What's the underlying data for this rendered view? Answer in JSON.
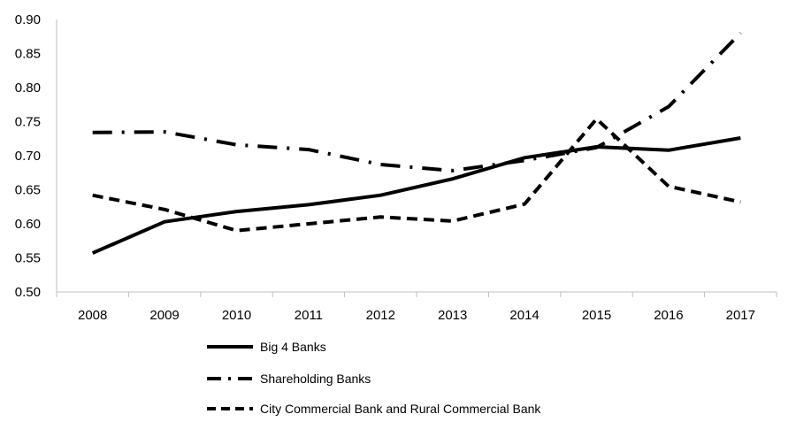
{
  "chart_data": {
    "type": "line",
    "title": "",
    "xlabel": "",
    "ylabel": "",
    "ylim": [
      0.5,
      0.9
    ],
    "yticks": [
      "0.50",
      "0.55",
      "0.60",
      "0.65",
      "0.70",
      "0.75",
      "0.80",
      "0.85",
      "0.90"
    ],
    "x": [
      "2008",
      "2009",
      "2010",
      "2011",
      "2012",
      "2013",
      "2014",
      "2015",
      "2016",
      "2017"
    ],
    "grid": false,
    "legend_position": "bottom",
    "series": [
      {
        "name": "Big 4 Banks",
        "style": "solid",
        "color": "#000000",
        "values": [
          0.557,
          0.603,
          0.618,
          0.628,
          0.642,
          0.666,
          0.697,
          0.713,
          0.708,
          0.726
        ]
      },
      {
        "name": "Shareholding Banks",
        "style": "dash-dot",
        "color": "#000000",
        "values": [
          0.734,
          0.735,
          0.716,
          0.709,
          0.687,
          0.678,
          0.693,
          0.712,
          0.772,
          0.88
        ]
      },
      {
        "name": "City Commercial Bank and Rural Commercial Bank",
        "style": "dashed",
        "color": "#000000",
        "values": [
          0.642,
          0.621,
          0.59,
          0.6,
          0.61,
          0.604,
          0.629,
          0.754,
          0.655,
          0.632
        ]
      }
    ]
  }
}
